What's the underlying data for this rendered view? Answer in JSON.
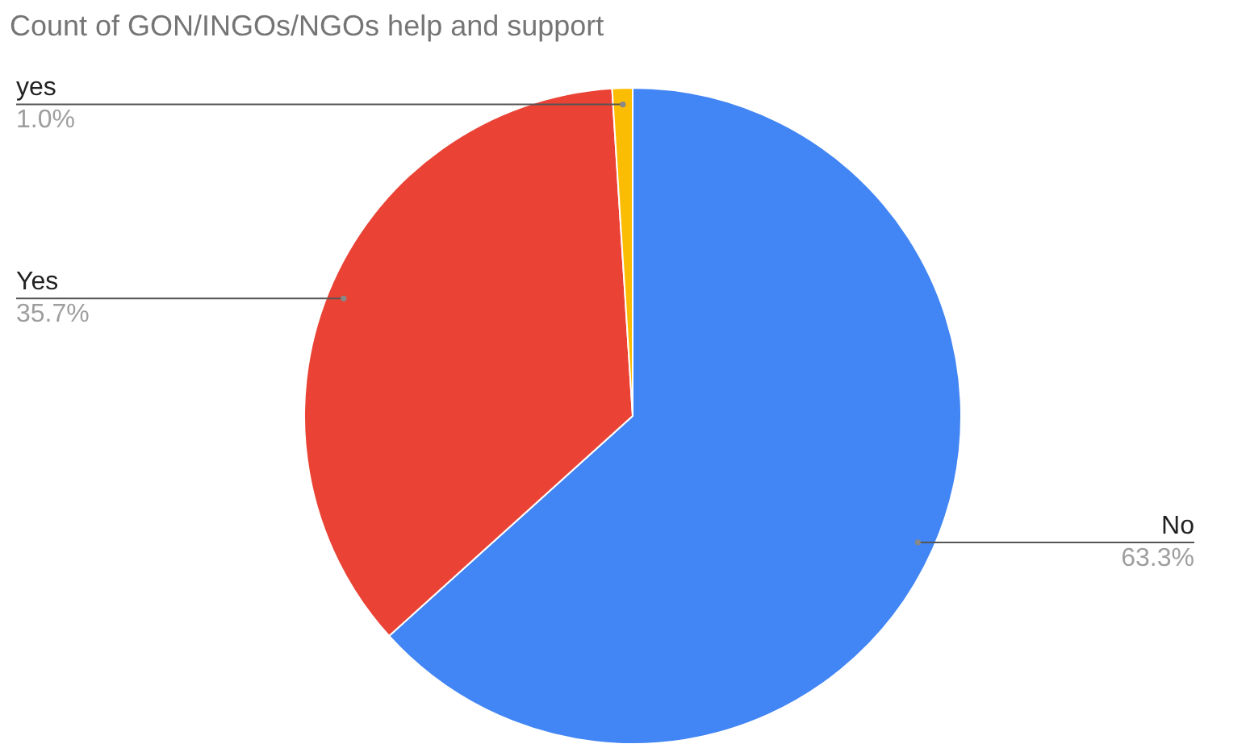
{
  "chart_data": {
    "type": "pie",
    "title": "Count of GON/INGOs/NGOs help and support",
    "categories": [
      "No",
      "Yes",
      "yes"
    ],
    "values": [
      63.3,
      35.7,
      1.0
    ],
    "value_labels": [
      "63.3%",
      "35.7%",
      "1.0%"
    ],
    "colors": [
      "#4285f4",
      "#ea4335",
      "#fbbc04"
    ],
    "legend": false
  }
}
